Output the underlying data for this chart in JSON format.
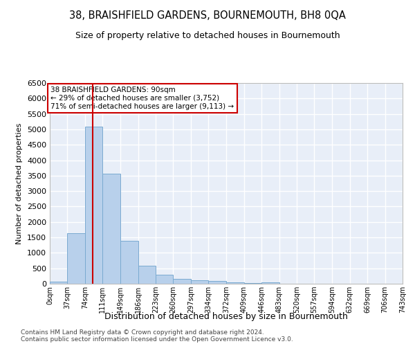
{
  "title": "38, BRAISHFIELD GARDENS, BOURNEMOUTH, BH8 0QA",
  "subtitle": "Size of property relative to detached houses in Bournemouth",
  "xlabel": "Distribution of detached houses by size in Bournemouth",
  "ylabel": "Number of detached properties",
  "bar_color": "#b8d0eb",
  "bar_edge_color": "#7aaad0",
  "background_color": "#e8eef8",
  "grid_color": "white",
  "bins": [
    0,
    37,
    74,
    111,
    149,
    186,
    223,
    260,
    297,
    334,
    372,
    409,
    446,
    483,
    520,
    557,
    594,
    632,
    669,
    706,
    743
  ],
  "bar_heights": [
    70,
    1630,
    5080,
    3575,
    1400,
    590,
    300,
    150,
    115,
    85,
    50,
    30,
    50,
    0,
    0,
    0,
    0,
    0,
    0,
    0
  ],
  "xlim": [
    0,
    743
  ],
  "ylim": [
    0,
    6500
  ],
  "yticks": [
    0,
    500,
    1000,
    1500,
    2000,
    2500,
    3000,
    3500,
    4000,
    4500,
    5000,
    5500,
    6000,
    6500
  ],
  "property_size": 90,
  "red_line_color": "#cc0000",
  "annotation_text": "38 BRAISHFIELD GARDENS: 90sqm\n← 29% of detached houses are smaller (3,752)\n71% of semi-detached houses are larger (9,113) →",
  "annotation_box_color": "white",
  "annotation_box_edge_color": "#cc0000",
  "footer_line1": "Contains HM Land Registry data © Crown copyright and database right 2024.",
  "footer_line2": "Contains public sector information licensed under the Open Government Licence v3.0.",
  "tick_labels": [
    "0sqm",
    "37sqm",
    "74sqm",
    "111sqm",
    "149sqm",
    "186sqm",
    "223sqm",
    "260sqm",
    "297sqm",
    "334sqm",
    "372sqm",
    "409sqm",
    "446sqm",
    "483sqm",
    "520sqm",
    "557sqm",
    "594sqm",
    "632sqm",
    "669sqm",
    "706sqm",
    "743sqm"
  ]
}
